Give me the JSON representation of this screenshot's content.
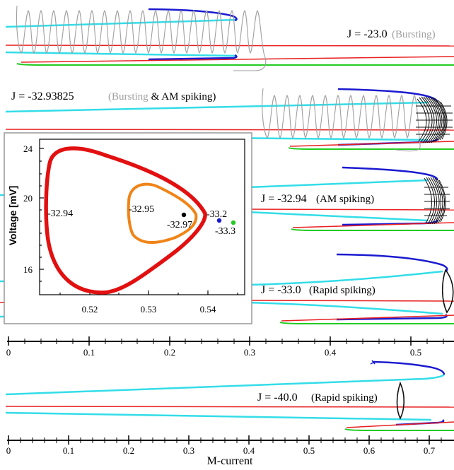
{
  "panels": [
    {
      "j": "J = -23.0",
      "desc": "(Bursting)"
    },
    {
      "j": "J = -32.93825",
      "desc_gray": "(Bursting",
      "desc_black": "& AM spiking)"
    },
    {
      "j": "J = -32.94",
      "desc": "(AM spiking)"
    },
    {
      "j": "J = -33.0",
      "desc": "(Rapid spiking)"
    },
    {
      "j": "J = -40.0",
      "desc": "(Rapid spiking)"
    }
  ],
  "axis_top": {
    "ticks": [
      "0",
      "0.1",
      "0.2",
      "0.3",
      "0.4",
      "0.5"
    ]
  },
  "axis_bottom": {
    "ticks": [
      "0",
      "0.1",
      "0.2",
      "0.3",
      "0.4",
      "0.5",
      "0.6",
      "0.7"
    ],
    "label": "M-current"
  },
  "inset": {
    "ylabel": "Voltage [mV]",
    "yticks": [
      "16",
      "20",
      "24"
    ],
    "xticks": [
      "0.52",
      "0.53",
      "0.54"
    ],
    "labels": {
      "a": "-32.94",
      "b": "-32.95",
      "c": "-32.97",
      "d": "-33.2",
      "e": "-33.3"
    }
  },
  "colors": {
    "cyan": "#33dde8",
    "blue": "#1a1ad0",
    "red": "#e82020",
    "green": "#22cc22",
    "orange": "#f08418",
    "inset_red": "#e21010",
    "gray": "#a0a0a0"
  }
}
